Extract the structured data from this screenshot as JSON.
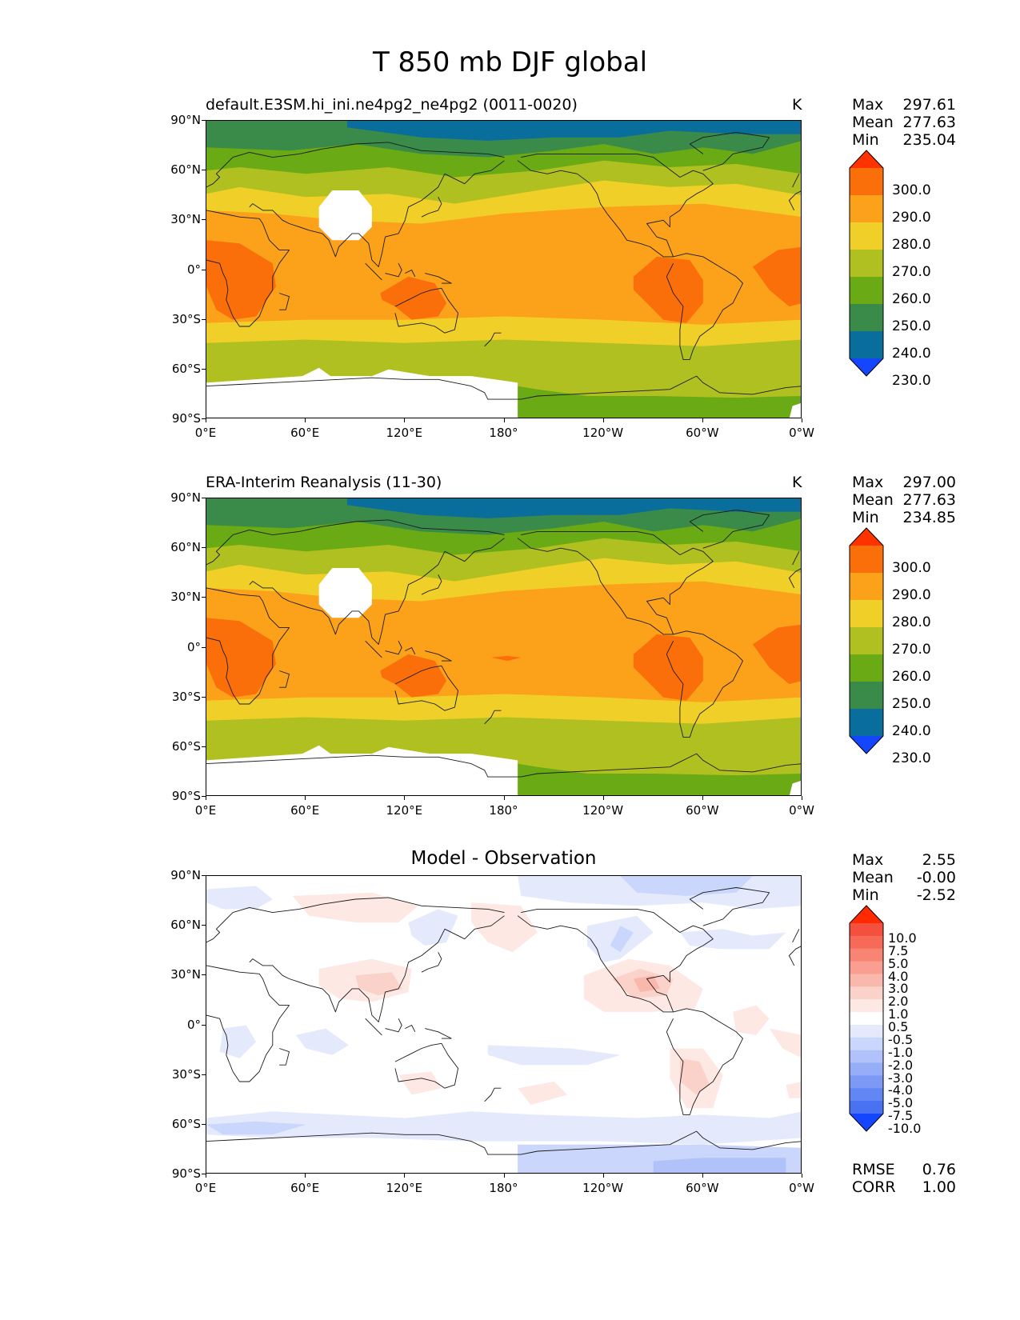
{
  "title": "T 850 mb DJF global",
  "xticks": [
    "0°E",
    "60°E",
    "120°E",
    "180°",
    "120°W",
    "60°W",
    "0°W"
  ],
  "yticks": [
    "90°N",
    "60°N",
    "30°N",
    "0°",
    "30°S",
    "60°S",
    "90°S"
  ],
  "panels": [
    {
      "title": "default.E3SM.hi_ini.ne4pg2_ne4pg2 (0011-0020)",
      "units": "K",
      "stats": {
        "max_label": "Max",
        "max": "297.61",
        "mean_label": "Mean",
        "mean": "277.63",
        "min_label": "Min",
        "min": "235.04"
      }
    },
    {
      "title": "ERA-Interim Reanalysis (11-30)",
      "units": "K",
      "stats": {
        "max_label": "Max",
        "max": "297.00",
        "mean_label": "Mean",
        "mean": "277.63",
        "min_label": "Min",
        "min": "234.85"
      }
    },
    {
      "title": "Model - Observation",
      "units": "",
      "stats": {
        "max_label": "Max",
        "max": "2.55",
        "mean_label": "Mean",
        "mean": "-0.00",
        "min_label": "Min",
        "min": "-2.52"
      },
      "metrics": {
        "rmse_label": "RMSE",
        "rmse": "0.76",
        "corr_label": "CORR",
        "corr": "1.00"
      }
    }
  ],
  "colorbar_abs": {
    "labels": [
      "300.0",
      "290.0",
      "280.0",
      "270.0",
      "260.0",
      "250.0",
      "240.0",
      "230.0"
    ],
    "colors": [
      "#ff3300",
      "#fa6f0a",
      "#fca21a",
      "#f0d028",
      "#b0c020",
      "#6aaa14",
      "#3a8a4a",
      "#0a6e9c",
      "#1446ff"
    ]
  },
  "colorbar_diff": {
    "labels": [
      "10.0",
      "7.5",
      "5.0",
      "4.0",
      "3.0",
      "2.0",
      "1.0",
      "0.5",
      "-0.5",
      "-1.0",
      "-2.0",
      "-3.0",
      "-4.0",
      "-5.0",
      "-7.5",
      "-10.0"
    ],
    "colors": [
      "#ff2a00",
      "#f5503e",
      "#f76a58",
      "#f88474",
      "#f99e90",
      "#fab8ac",
      "#fbd2ca",
      "#fde8e4",
      "#ffffff",
      "#e4eafc",
      "#cad6fb",
      "#b0c2f9",
      "#96aef7",
      "#7c9af5",
      "#6286f3",
      "#4872f1",
      "#1446ff"
    ]
  }
}
